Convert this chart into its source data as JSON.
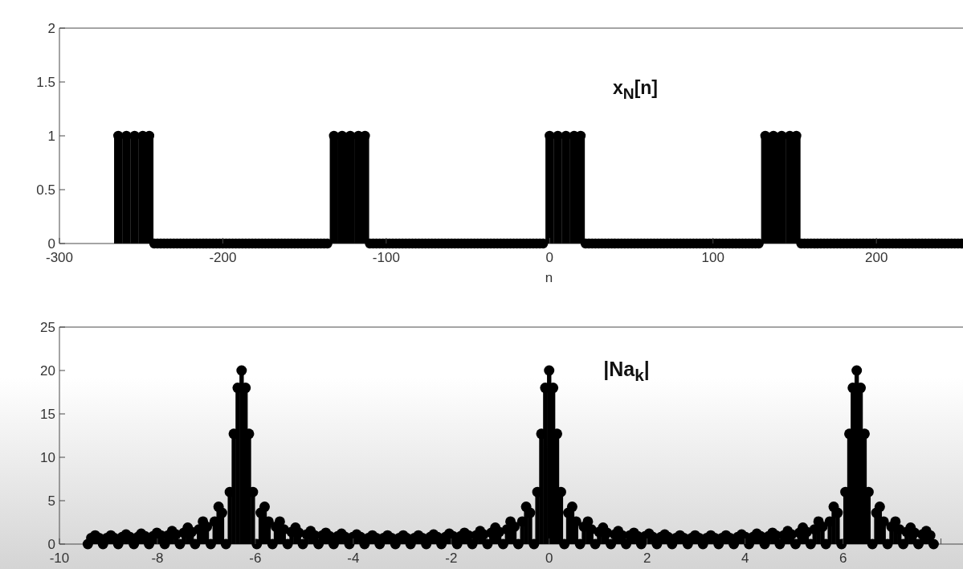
{
  "chart_data": [
    {
      "type": "lollipop",
      "title": "x$_{N}$[n]",
      "xlabel": "n",
      "color": "#000000",
      "marker": "circle",
      "xlim": [
        -300,
        253
      ],
      "xticks": [
        -300,
        -200,
        -100,
        0,
        100,
        200
      ],
      "ylim": [
        0,
        2
      ],
      "yticks": [
        0,
        0.5,
        1,
        1.5,
        2
      ],
      "x": [
        -264,
        -259,
        -254,
        -249,
        -245,
        -242,
        -240,
        -238,
        -236,
        -234,
        -232,
        -230,
        -228,
        -226,
        -224,
        -222,
        -220,
        -218,
        -216,
        -214,
        -212,
        -210,
        -208,
        -206,
        -204,
        -202,
        -200,
        -198,
        -196,
        -194,
        -192,
        -190,
        -188,
        -186,
        -184,
        -182,
        -180,
        -178,
        -176,
        -174,
        -172,
        -170,
        -168,
        -166,
        -164,
        -162,
        -160,
        -158,
        -156,
        -154,
        -152,
        -150,
        -148,
        -146,
        -144,
        -142,
        -140,
        -138,
        -136,
        -132,
        -127,
        -122,
        -117,
        -113,
        -110,
        -108,
        -106,
        -104,
        -102,
        -100,
        -98,
        -96,
        -94,
        -92,
        -90,
        -88,
        -86,
        -84,
        -82,
        -80,
        -78,
        -76,
        -74,
        -72,
        -70,
        -68,
        -66,
        -64,
        -62,
        -60,
        -58,
        -56,
        -54,
        -52,
        -50,
        -48,
        -46,
        -44,
        -42,
        -40,
        -38,
        -36,
        -34,
        -32,
        -30,
        -28,
        -26,
        -24,
        -22,
        -20,
        -18,
        -16,
        -14,
        -12,
        -10,
        -8,
        -6,
        -4,
        0,
        5,
        10,
        15,
        19,
        22,
        24,
        26,
        28,
        30,
        32,
        34,
        36,
        38,
        40,
        42,
        44,
        46,
        48,
        50,
        52,
        54,
        56,
        58,
        60,
        62,
        64,
        66,
        68,
        70,
        72,
        74,
        76,
        78,
        80,
        82,
        84,
        86,
        88,
        90,
        92,
        94,
        96,
        98,
        100,
        102,
        104,
        106,
        108,
        110,
        112,
        114,
        116,
        118,
        120,
        122,
        124,
        126,
        128,
        132,
        137,
        142,
        147,
        151,
        154,
        156,
        158,
        160,
        162,
        164,
        166,
        168,
        170,
        172,
        174,
        176,
        178,
        180,
        182,
        184,
        186,
        188,
        190,
        192,
        194,
        196,
        198,
        200,
        202,
        204,
        206,
        208,
        210,
        212,
        214,
        216,
        218,
        220,
        222,
        224,
        226,
        228,
        230,
        232,
        234,
        236,
        238,
        240,
        242,
        244,
        246,
        248,
        250,
        252
      ],
      "values": [
        1,
        1,
        1,
        1,
        1,
        0,
        0,
        0,
        0,
        0,
        0,
        0,
        0,
        0,
        0,
        0,
        0,
        0,
        0,
        0,
        0,
        0,
        0,
        0,
        0,
        0,
        0,
        0,
        0,
        0,
        0,
        0,
        0,
        0,
        0,
        0,
        0,
        0,
        0,
        0,
        0,
        0,
        0,
        0,
        0,
        0,
        0,
        0,
        0,
        0,
        0,
        0,
        0,
        0,
        0,
        0,
        0,
        0,
        0,
        1,
        1,
        1,
        1,
        1,
        0,
        0,
        0,
        0,
        0,
        0,
        0,
        0,
        0,
        0,
        0,
        0,
        0,
        0,
        0,
        0,
        0,
        0,
        0,
        0,
        0,
        0,
        0,
        0,
        0,
        0,
        0,
        0,
        0,
        0,
        0,
        0,
        0,
        0,
        0,
        0,
        0,
        0,
        0,
        0,
        0,
        0,
        0,
        0,
        0,
        0,
        0,
        0,
        0,
        0,
        0,
        0,
        0,
        0,
        1,
        1,
        1,
        1,
        1,
        0,
        0,
        0,
        0,
        0,
        0,
        0,
        0,
        0,
        0,
        0,
        0,
        0,
        0,
        0,
        0,
        0,
        0,
        0,
        0,
        0,
        0,
        0,
        0,
        0,
        0,
        0,
        0,
        0,
        0,
        0,
        0,
        0,
        0,
        0,
        0,
        0,
        0,
        0,
        0,
        0,
        0,
        0,
        0,
        0,
        0,
        0,
        0,
        0,
        0,
        0,
        0,
        0,
        0,
        1,
        1,
        1,
        1,
        1,
        0,
        0,
        0,
        0,
        0,
        0,
        0,
        0,
        0,
        0,
        0,
        0,
        0,
        0,
        0,
        0,
        0,
        0,
        0,
        0,
        0,
        0,
        0,
        0,
        0,
        0,
        0,
        0,
        0,
        0,
        0,
        0,
        0,
        0,
        0,
        0,
        0,
        0,
        0,
        0,
        0,
        0,
        0,
        0,
        0,
        0,
        0,
        0,
        0,
        0
      ]
    },
    {
      "type": "lollipop",
      "title": "|Na$_{k}$|",
      "color": "#000000",
      "marker": "circle",
      "xlim": [
        -10,
        8.45
      ],
      "xticks": [
        -10,
        -8,
        -6,
        -4,
        -2,
        0,
        2,
        4,
        6,
        {
          "value": 8,
          "label": null
        }
      ],
      "ylim": [
        0,
        25
      ],
      "yticks": [
        0,
        5,
        10,
        15,
        20,
        25
      ],
      "x": [
        -9.42,
        -9.35,
        -9.27,
        -9.19,
        -9.11,
        -9.03,
        -8.95,
        -8.88,
        -8.8,
        -8.72,
        -8.64,
        -8.56,
        -8.48,
        -8.4,
        -8.33,
        -8.25,
        -8.17,
        -8.09,
        -8.01,
        -7.93,
        -7.85,
        -7.78,
        -7.7,
        -7.62,
        -7.54,
        -7.46,
        -7.38,
        -7.3,
        -7.23,
        -7.15,
        -7.07,
        -6.99,
        -6.91,
        -6.83,
        -6.75,
        -6.68,
        -6.6,
        -6.52,
        -6.44,
        -6.36,
        -6.28,
        -6.2,
        -6.13,
        -6.05,
        -5.97,
        -5.89,
        -5.81,
        -5.73,
        -5.65,
        -5.58,
        -5.5,
        -5.42,
        -5.34,
        -5.26,
        -5.18,
        -5.11,
        -5.03,
        -4.95,
        -4.87,
        -4.79,
        -4.71,
        -4.63,
        -4.56,
        -4.48,
        -4.4,
        -4.32,
        -4.24,
        -4.16,
        -4.08,
        -4.01,
        -3.93,
        -3.85,
        -3.77,
        -3.69,
        -3.61,
        -3.53,
        -3.46,
        -3.38,
        -3.3,
        -3.22,
        -3.14,
        -3.06,
        -2.98,
        -2.91,
        -2.83,
        -2.75,
        -2.67,
        -2.59,
        -2.51,
        -2.43,
        -2.36,
        -2.28,
        -2.2,
        -2.12,
        -2.04,
        -1.96,
        -1.88,
        -1.81,
        -1.73,
        -1.65,
        -1.57,
        -1.49,
        -1.41,
        -1.34,
        -1.26,
        -1.18,
        -1.1,
        -1.02,
        -0.94,
        -0.86,
        -0.79,
        -0.71,
        -0.63,
        -0.55,
        -0.47,
        -0.39,
        -0.31,
        -0.24,
        -0.16,
        -0.08,
        0,
        0.08,
        0.16,
        0.24,
        0.31,
        0.39,
        0.47,
        0.55,
        0.63,
        0.71,
        0.79,
        0.86,
        0.94,
        1.02,
        1.1,
        1.18,
        1.26,
        1.34,
        1.41,
        1.49,
        1.57,
        1.65,
        1.73,
        1.81,
        1.88,
        1.96,
        2.04,
        2.12,
        2.2,
        2.28,
        2.36,
        2.43,
        2.51,
        2.59,
        2.67,
        2.75,
        2.83,
        2.91,
        2.98,
        3.06,
        3.14,
        3.22,
        3.3,
        3.38,
        3.46,
        3.53,
        3.61,
        3.69,
        3.77,
        3.85,
        3.93,
        4.01,
        4.08,
        4.16,
        4.24,
        4.32,
        4.4,
        4.48,
        4.56,
        4.63,
        4.71,
        4.79,
        4.87,
        4.95,
        5.03,
        5.11,
        5.18,
        5.26,
        5.34,
        5.42,
        5.5,
        5.58,
        5.65,
        5.73,
        5.81,
        5.89,
        5.97,
        6.05,
        6.13,
        6.2,
        6.28,
        6.36,
        6.44,
        6.52,
        6.6,
        6.68,
        6.75,
        6.83,
        6.91,
        6.99,
        7.07,
        7.15,
        7.23,
        7.3,
        7.38,
        7.46,
        7.54,
        7.62,
        7.7,
        7.78,
        7.85
      ],
      "values": [
        0,
        0.7,
        1,
        0.7,
        0,
        0.7,
        1,
        0.7,
        0,
        0.8,
        1.1,
        0.8,
        0,
        0.8,
        1.2,
        0.9,
        0,
        0.9,
        1.3,
        1,
        0,
        1,
        1.5,
        1.1,
        0,
        1.3,
        1.9,
        1.4,
        0,
        1.7,
        2.6,
        2,
        0,
        2.6,
        4.3,
        3.6,
        0,
        6,
        12.7,
        18,
        20,
        18,
        12.7,
        6,
        0,
        3.6,
        4.3,
        2.6,
        0,
        2,
        2.6,
        1.7,
        0,
        1.4,
        1.9,
        1.3,
        0,
        1.1,
        1.5,
        1,
        0,
        1,
        1.3,
        0.9,
        0,
        0.9,
        1.2,
        0.8,
        0,
        0.8,
        1.1,
        0.8,
        0,
        0.7,
        1,
        0.7,
        0,
        0.7,
        1,
        0.7,
        0,
        0.7,
        1,
        0.7,
        0,
        0.7,
        1,
        0.7,
        0,
        0.8,
        1.1,
        0.8,
        0,
        0.8,
        1.2,
        0.9,
        0,
        0.9,
        1.3,
        1,
        0,
        1,
        1.5,
        1.1,
        0,
        1.3,
        1.9,
        1.4,
        0,
        1.7,
        2.6,
        2,
        0,
        2.6,
        4.3,
        3.6,
        0,
        6,
        12.7,
        18,
        20,
        18,
        12.7,
        6,
        0,
        3.6,
        4.3,
        2.6,
        0,
        2,
        2.6,
        1.7,
        0,
        1.4,
        1.9,
        1.3,
        0,
        1.1,
        1.5,
        1,
        0,
        1,
        1.3,
        0.9,
        0,
        0.9,
        1.2,
        0.8,
        0,
        0.8,
        1.1,
        0.8,
        0,
        0.7,
        1,
        0.7,
        0,
        0.7,
        1,
        0.7,
        0,
        0.7,
        1,
        0.7,
        0,
        0.7,
        1,
        0.7,
        0,
        0.8,
        1.1,
        0.8,
        0,
        0.8,
        1.2,
        0.9,
        0,
        0.9,
        1.3,
        1,
        0,
        1,
        1.5,
        1.1,
        0,
        1.3,
        1.9,
        1.4,
        0,
        1.7,
        2.6,
        2,
        0,
        2.6,
        4.3,
        3.6,
        0,
        6,
        12.7,
        18,
        20,
        18,
        12.7,
        6,
        0,
        3.6,
        4.3,
        2.6,
        0,
        2,
        2.6,
        1.7,
        0,
        1.4,
        1.9,
        1.3,
        0,
        1.1,
        1.5,
        1,
        0
      ]
    }
  ]
}
